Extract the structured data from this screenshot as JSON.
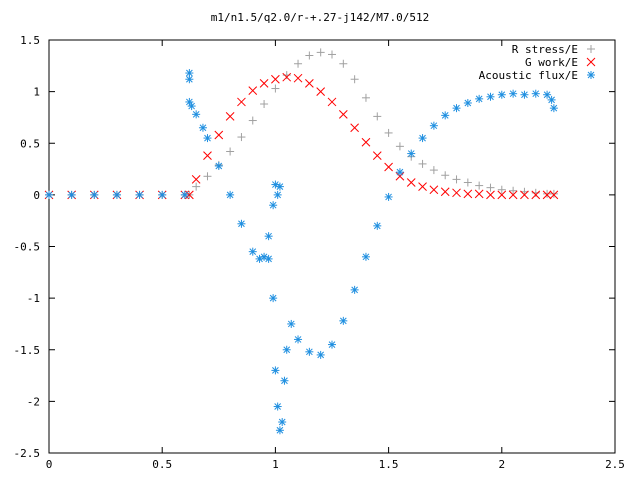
{
  "chart_data": {
    "type": "scatter",
    "title": "m1/n1.5/q2.0/r-+.27-j142/M7.0/512",
    "xlim": [
      0,
      2.5
    ],
    "ylim": [
      -2.5,
      1.5
    ],
    "x_ticks": [
      0,
      0.5,
      1,
      1.5,
      2,
      2.5
    ],
    "x_tick_labels": [
      "0",
      "0.5",
      "1",
      "1.5",
      "2",
      "2.5"
    ],
    "y_ticks": [
      -2.5,
      -2,
      -1.5,
      -1,
      -0.5,
      0,
      0.5,
      1,
      1.5
    ],
    "y_tick_labels": [
      "-2.5",
      "-2",
      "-1.5",
      "-1",
      "-0.5",
      "0",
      "0.5",
      "1",
      "1.5"
    ],
    "grid": false,
    "legend_position": "top-right",
    "series": [
      {
        "name": "R stress/E",
        "marker": "+",
        "color": "#a0a0a0",
        "x": [
          0,
          0.1,
          0.2,
          0.3,
          0.4,
          0.5,
          0.6,
          0.62,
          0.65,
          0.7,
          0.75,
          0.8,
          0.85,
          0.9,
          0.95,
          1.0,
          1.05,
          1.1,
          1.15,
          1.2,
          1.25,
          1.3,
          1.35,
          1.4,
          1.45,
          1.5,
          1.55,
          1.6,
          1.65,
          1.7,
          1.75,
          1.8,
          1.85,
          1.9,
          1.95,
          2.0,
          2.05,
          2.1,
          2.15,
          2.2,
          2.23
        ],
        "y": [
          0,
          0,
          0,
          0,
          0,
          0,
          0,
          0,
          0.08,
          0.18,
          0.29,
          0.42,
          0.56,
          0.72,
          0.88,
          1.03,
          1.16,
          1.27,
          1.35,
          1.38,
          1.36,
          1.27,
          1.12,
          0.94,
          0.76,
          0.6,
          0.47,
          0.37,
          0.3,
          0.24,
          0.19,
          0.15,
          0.12,
          0.09,
          0.07,
          0.05,
          0.04,
          0.03,
          0.02,
          0.01,
          0.01
        ]
      },
      {
        "name": "G work/E",
        "marker": "x",
        "color": "#ff0000",
        "x": [
          0,
          0.1,
          0.2,
          0.3,
          0.4,
          0.5,
          0.6,
          0.62,
          0.65,
          0.7,
          0.75,
          0.8,
          0.85,
          0.9,
          0.95,
          1.0,
          1.05,
          1.1,
          1.15,
          1.2,
          1.25,
          1.3,
          1.35,
          1.4,
          1.45,
          1.5,
          1.55,
          1.6,
          1.65,
          1.7,
          1.75,
          1.8,
          1.85,
          1.9,
          1.95,
          2.0,
          2.05,
          2.1,
          2.15,
          2.2,
          2.23
        ],
        "y": [
          0,
          0,
          0,
          0,
          0,
          0,
          0,
          0,
          0.15,
          0.38,
          0.58,
          0.76,
          0.9,
          1.01,
          1.08,
          1.12,
          1.14,
          1.13,
          1.08,
          1.0,
          0.9,
          0.78,
          0.65,
          0.51,
          0.38,
          0.27,
          0.18,
          0.12,
          0.08,
          0.05,
          0.03,
          0.02,
          0.01,
          0.01,
          0.0,
          0.0,
          0.0,
          0.0,
          0.0,
          0.0,
          0.0
        ]
      },
      {
        "name": "Acoustic flux/E",
        "marker": "*",
        "color": "#1f8fe0",
        "x": [
          0,
          0.1,
          0.2,
          0.3,
          0.4,
          0.5,
          0.6,
          0.62,
          0.63,
          0.65,
          0.68,
          0.7,
          0.75,
          0.8,
          0.85,
          0.9,
          0.93,
          0.95,
          0.97,
          0.99,
          1.0,
          1.01,
          1.02,
          1.03,
          1.04,
          1.05,
          1.07,
          1.1,
          1.15,
          1.2,
          1.25,
          1.3,
          1.35,
          1.4,
          1.45,
          1.5,
          1.55,
          1.6,
          1.65,
          1.7,
          1.75,
          1.8,
          1.85,
          1.9,
          1.95,
          2.0,
          2.05,
          2.1,
          2.15,
          2.2,
          2.22,
          2.23,
          0.97,
          0.99,
          1.0,
          1.01,
          1.02,
          0.62,
          0.62
        ],
        "y": [
          0,
          0,
          0,
          0,
          0,
          0,
          0,
          0.9,
          0.86,
          0.78,
          0.65,
          0.55,
          0.28,
          0.0,
          -0.28,
          -0.55,
          -0.62,
          -0.6,
          -0.62,
          -1.0,
          -1.7,
          -2.05,
          -2.28,
          -2.2,
          -1.8,
          -1.5,
          -1.25,
          -1.4,
          -1.52,
          -1.55,
          -1.45,
          -1.22,
          -0.92,
          -0.6,
          -0.3,
          -0.02,
          0.22,
          0.4,
          0.55,
          0.67,
          0.77,
          0.84,
          0.89,
          0.93,
          0.95,
          0.97,
          0.98,
          0.97,
          0.98,
          0.97,
          0.92,
          0.84,
          -0.4,
          -0.1,
          0.1,
          0.0,
          0.08,
          1.18,
          1.12
        ]
      }
    ]
  }
}
